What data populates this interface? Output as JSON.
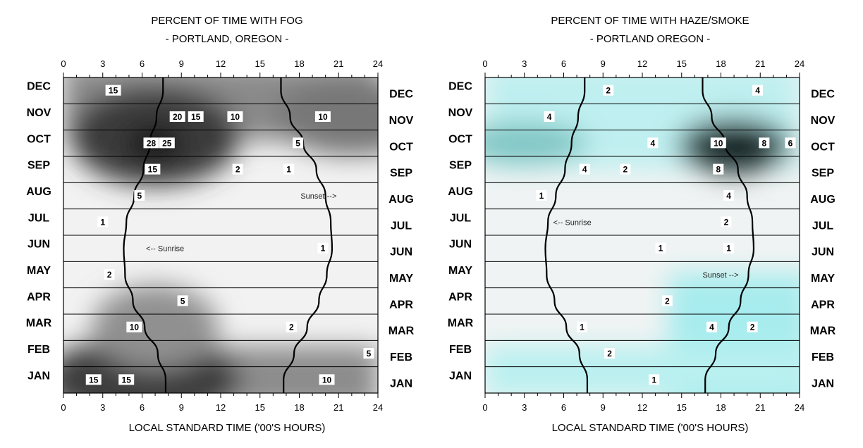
{
  "chart_data": [
    {
      "type": "heatmap",
      "title": "PERCENT OF TIME WITH FOG",
      "subtitle": "- PORTLAND, OREGON -",
      "xlabel": "LOCAL STANDARD TIME ('00'S HOURS)",
      "ylabel": "",
      "xlim": [
        0,
        24
      ],
      "x_ticks": [
        "0",
        "3",
        "6",
        "9",
        "12",
        "15",
        "18",
        "21",
        "24"
      ],
      "months": [
        "DEC",
        "NOV",
        "OCT",
        "SEP",
        "AUG",
        "JUL",
        "JUN",
        "MAY",
        "APR",
        "MAR",
        "FEB",
        "JAN"
      ],
      "colormap": "white-to-dark-gray",
      "contour_labels": [
        {
          "hour": 3.8,
          "month": "DEC",
          "value": "15"
        },
        {
          "hour": 8.7,
          "month": "NOV",
          "value": "20"
        },
        {
          "hour": 10.1,
          "month": "NOV",
          "value": "15"
        },
        {
          "hour": 13.1,
          "month": "NOV",
          "value": "10"
        },
        {
          "hour": 19.8,
          "month": "NOV",
          "value": "10"
        },
        {
          "hour": 7.9,
          "month": "OCT",
          "value": "25"
        },
        {
          "hour": 6.7,
          "month": "OCT",
          "value": "28"
        },
        {
          "hour": 17.9,
          "month": "OCT",
          "value": "5"
        },
        {
          "hour": 13.3,
          "month": "SEP",
          "value": "2"
        },
        {
          "hour": 17.2,
          "month": "SEP",
          "value": "1"
        },
        {
          "hour": 6.8,
          "month": "SEP",
          "value": "15"
        },
        {
          "hour": 5.8,
          "month": "AUG",
          "value": "5"
        },
        {
          "hour": 3.0,
          "month": "JUL",
          "value": "1"
        },
        {
          "hour": 19.8,
          "month": "JUN",
          "value": "1"
        },
        {
          "hour": 3.5,
          "month": "MAY",
          "value": "2"
        },
        {
          "hour": 9.1,
          "month": "APR",
          "value": "5"
        },
        {
          "hour": 17.4,
          "month": "MAR",
          "value": "2"
        },
        {
          "hour": 5.4,
          "month": "MAR",
          "value": "10"
        },
        {
          "hour": 23.3,
          "month": "FEB",
          "value": "5"
        },
        {
          "hour": 4.8,
          "month": "JAN",
          "value": "15"
        },
        {
          "hour": 2.3,
          "month": "JAN",
          "value": "15"
        },
        {
          "hour": 20.1,
          "month": "JAN",
          "value": "10"
        }
      ],
      "annotations": [
        {
          "text": "Sunset -->",
          "hour": 18.1,
          "month": "AUG"
        },
        {
          "text": "<-- Sunrise",
          "hour": 6.3,
          "month": "JUN"
        }
      ],
      "sunrise": [
        {
          "month": "DEC",
          "hour": 7.6
        },
        {
          "month": "NOV",
          "hour": 7.1
        },
        {
          "month": "OCT",
          "hour": 6.6
        },
        {
          "month": "SEP",
          "hour": 6.1
        },
        {
          "month": "AUG",
          "hour": 5.4
        },
        {
          "month": "JUL",
          "hour": 4.8
        },
        {
          "month": "JUN",
          "hour": 4.6
        },
        {
          "month": "MAY",
          "hour": 4.7
        },
        {
          "month": "APR",
          "hour": 5.3
        },
        {
          "month": "MAR",
          "hour": 6.2
        },
        {
          "month": "FEB",
          "hour": 7.2
        },
        {
          "month": "JAN",
          "hour": 7.8
        }
      ],
      "sunset": [
        {
          "month": "DEC",
          "hour": 16.6
        },
        {
          "month": "NOV",
          "hour": 17.3
        },
        {
          "month": "OCT",
          "hour": 18.3
        },
        {
          "month": "SEP",
          "hour": 19.3
        },
        {
          "month": "AUG",
          "hour": 20.0
        },
        {
          "month": "JUL",
          "hour": 20.4
        },
        {
          "month": "JUN",
          "hour": 20.5
        },
        {
          "month": "MAY",
          "hour": 20.1
        },
        {
          "month": "APR",
          "hour": 19.5
        },
        {
          "month": "MAR",
          "hour": 18.6
        },
        {
          "month": "FEB",
          "hour": 17.6
        },
        {
          "month": "JAN",
          "hour": 16.8
        }
      ]
    },
    {
      "type": "heatmap",
      "title": "PERCENT OF TIME WITH HAZE/SMOKE",
      "subtitle": "- PORTLAND OREGON -",
      "xlabel": "LOCAL STANDARD TIME ('00'S HOURS)",
      "ylabel": "",
      "xlim": [
        0,
        24
      ],
      "x_ticks": [
        "0",
        "3",
        "6",
        "9",
        "12",
        "15",
        "18",
        "21",
        "24"
      ],
      "months": [
        "DEC",
        "NOV",
        "OCT",
        "SEP",
        "AUG",
        "JUL",
        "JUN",
        "MAY",
        "APR",
        "MAR",
        "FEB",
        "JAN"
      ],
      "colormap": "light-cyan-to-black",
      "contour_labels": [
        {
          "hour": 9.4,
          "month": "DEC",
          "value": "2"
        },
        {
          "hour": 20.8,
          "month": "DEC",
          "value": "4"
        },
        {
          "hour": 4.9,
          "month": "NOV",
          "value": "4"
        },
        {
          "hour": 21.3,
          "month": "OCT",
          "value": "8"
        },
        {
          "hour": 23.3,
          "month": "OCT",
          "value": "6"
        },
        {
          "hour": 12.8,
          "month": "OCT",
          "value": "4"
        },
        {
          "hour": 7.6,
          "month": "SEP",
          "value": "4"
        },
        {
          "hour": 17.8,
          "month": "OCT",
          "value": "10"
        },
        {
          "hour": 17.8,
          "month": "SEP",
          "value": "8"
        },
        {
          "hour": 10.7,
          "month": "SEP",
          "value": "2"
        },
        {
          "hour": 4.3,
          "month": "AUG",
          "value": "1"
        },
        {
          "hour": 18.6,
          "month": "AUG",
          "value": "4"
        },
        {
          "hour": 18.4,
          "month": "JUL",
          "value": "2"
        },
        {
          "hour": 13.4,
          "month": "JUN",
          "value": "1"
        },
        {
          "hour": 18.6,
          "month": "JUN",
          "value": "1"
        },
        {
          "hour": 13.9,
          "month": "APR",
          "value": "2"
        },
        {
          "hour": 20.4,
          "month": "MAR",
          "value": "2"
        },
        {
          "hour": 17.3,
          "month": "MAR",
          "value": "4"
        },
        {
          "hour": 7.4,
          "month": "MAR",
          "value": "1"
        },
        {
          "hour": 9.5,
          "month": "FEB",
          "value": "2"
        },
        {
          "hour": 12.9,
          "month": "JAN",
          "value": "1"
        }
      ],
      "annotations": [
        {
          "text": "<-- Sunrise",
          "hour": 5.2,
          "month": "JUL"
        },
        {
          "text": "Sunset -->",
          "hour": 16.6,
          "month": "MAY"
        }
      ],
      "sunrise": [
        {
          "month": "DEC",
          "hour": 7.6
        },
        {
          "month": "NOV",
          "hour": 7.1
        },
        {
          "month": "OCT",
          "hour": 6.6
        },
        {
          "month": "SEP",
          "hour": 6.1
        },
        {
          "month": "AUG",
          "hour": 5.4
        },
        {
          "month": "JUL",
          "hour": 4.8
        },
        {
          "month": "JUN",
          "hour": 4.6
        },
        {
          "month": "MAY",
          "hour": 4.7
        },
        {
          "month": "APR",
          "hour": 5.3
        },
        {
          "month": "MAR",
          "hour": 6.2
        },
        {
          "month": "FEB",
          "hour": 7.2
        },
        {
          "month": "JAN",
          "hour": 7.8
        }
      ],
      "sunset": [
        {
          "month": "DEC",
          "hour": 16.6
        },
        {
          "month": "NOV",
          "hour": 17.3
        },
        {
          "month": "OCT",
          "hour": 18.3
        },
        {
          "month": "SEP",
          "hour": 19.3
        },
        {
          "month": "AUG",
          "hour": 20.0
        },
        {
          "month": "JUL",
          "hour": 20.4
        },
        {
          "month": "JUN",
          "hour": 20.5
        },
        {
          "month": "MAY",
          "hour": 20.1
        },
        {
          "month": "APR",
          "hour": 19.5
        },
        {
          "month": "MAR",
          "hour": 18.6
        },
        {
          "month": "FEB",
          "hour": 17.6
        },
        {
          "month": "JAN",
          "hour": 16.8
        }
      ]
    }
  ]
}
